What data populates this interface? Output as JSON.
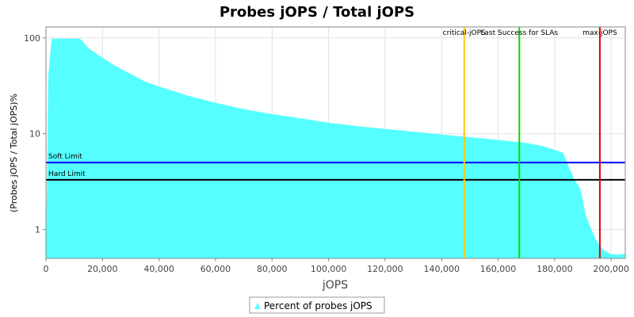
{
  "chart_data": {
    "type": "area",
    "title": "Probes jOPS / Total jOPS",
    "xlabel": "jOPS",
    "ylabel": "(Probes jOPS / Total jOPS)%",
    "xlim": [
      0,
      205000
    ],
    "ylim": [
      0.5,
      130
    ],
    "yscale": "log",
    "x_ticks": [
      0,
      20000,
      40000,
      60000,
      80000,
      100000,
      120000,
      140000,
      160000,
      180000,
      200000
    ],
    "x_tick_labels": [
      "0",
      "20,000",
      "40,000",
      "60,000",
      "80,000",
      "100,000",
      "120,000",
      "140,000",
      "160,000",
      "180,000",
      "200,000"
    ],
    "y_ticks": [
      1,
      10,
      100
    ],
    "y_tick_labels": [
      "1",
      "10",
      "100"
    ],
    "grid": true,
    "legend_position": "bottom",
    "series": [
      {
        "name": "Percent of probes jOPS",
        "color": "#55ffff",
        "x": [
          0,
          800,
          2000,
          5000,
          8000,
          12000,
          13000,
          15000,
          20000,
          25000,
          30000,
          35000,
          40000,
          45000,
          50000,
          55000,
          60000,
          70000,
          80000,
          90000,
          100000,
          110000,
          120000,
          130000,
          140000,
          150000,
          160000,
          170000,
          175000,
          180000,
          183000,
          185000,
          187000,
          189000,
          190000,
          191000,
          193000,
          195000,
          197000,
          200000,
          203000,
          205000
        ],
        "y": [
          0.5,
          40,
          98,
          98,
          98,
          98,
          92,
          78,
          62,
          50,
          42,
          35,
          31,
          28,
          25,
          23,
          21,
          18,
          16,
          14.5,
          13,
          12,
          11.2,
          10.5,
          9.8,
          9.2,
          8.6,
          8.0,
          7.5,
          6.8,
          6.3,
          4.5,
          3.3,
          2.7,
          2.0,
          1.4,
          1.0,
          0.75,
          0.62,
          0.55,
          0.55,
          0.56
        ]
      }
    ],
    "hlines": [
      {
        "label": "Soft Limit",
        "value": 5,
        "color": "#0000ff"
      },
      {
        "label": "Hard Limit",
        "value": 3.3,
        "color": "#000000"
      }
    ],
    "vlines": [
      {
        "label": "critical-jOPS",
        "value": 148000,
        "color": "#ffc800"
      },
      {
        "label": "Last Success for SLAs",
        "value": 167500,
        "color": "#00dd00"
      },
      {
        "label": "max-jOPS",
        "value": 196000,
        "color": "#dd0000"
      }
    ]
  }
}
